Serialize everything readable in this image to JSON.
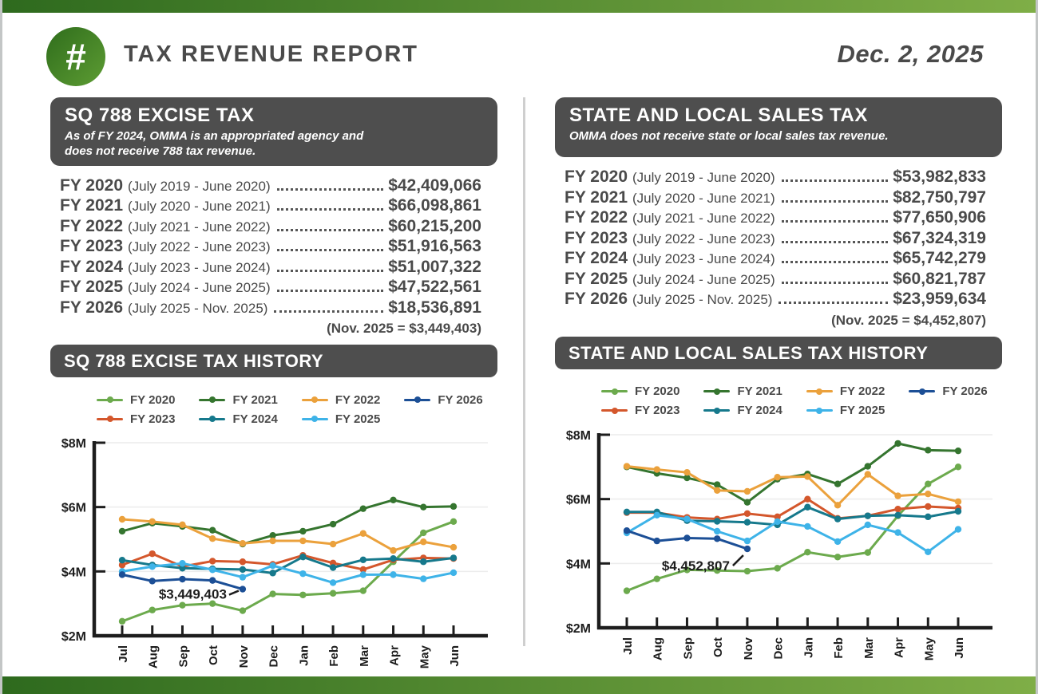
{
  "page": {
    "title": "TAX REVENUE REPORT",
    "date": "Dec. 2, 2025",
    "logo_glyph": "#"
  },
  "colors": {
    "accent_green_dark": "#2e6a1e",
    "accent_green_light": "#7fae47",
    "header_box": "#4e4e4e",
    "text": "#4a4a4a"
  },
  "left_panel": {
    "header": {
      "title": "SQ 788 EXCISE TAX",
      "subtitle": "As of FY 2024, OMMA is an appropriated agency and does not receive 788 tax revenue."
    },
    "rows": [
      {
        "fy": "FY 2020",
        "period": "(July 2019 - June 2020)",
        "amount": "$42,409,066"
      },
      {
        "fy": "FY 2021",
        "period": "(July 2020 - June 2021)",
        "amount": "$66,098,861"
      },
      {
        "fy": "FY 2022",
        "period": "(July 2021 - June 2022)",
        "amount": "$60,215,200"
      },
      {
        "fy": "FY 2023",
        "period": "(July 2022 - June 2023)",
        "amount": "$51,916,563"
      },
      {
        "fy": "FY 2024",
        "period": "(July 2023 - June 2024)",
        "amount": "$51,007,322"
      },
      {
        "fy": "FY 2025",
        "period": "(July 2024 - June 2025)",
        "amount": "$47,522,561"
      },
      {
        "fy": "FY 2026",
        "period": "(July 2025 - Nov. 2025)",
        "amount": "$18,536,891"
      }
    ],
    "footnote": "(Nov. 2025 = $3,449,403)",
    "chart_title": "SQ 788 EXCISE TAX HISTORY"
  },
  "right_panel": {
    "header": {
      "title": "STATE AND LOCAL SALES TAX",
      "subtitle": "OMMA does not receive state or local sales tax revenue."
    },
    "rows": [
      {
        "fy": "FY 2020",
        "period": "(July 2019 - June 2020)",
        "amount": "$53,982,833"
      },
      {
        "fy": "FY 2021",
        "period": "(July 2020 - June 2021)",
        "amount": "$82,750,797"
      },
      {
        "fy": "FY 2022",
        "period": "(July 2021 - June 2022)",
        "amount": "$77,650,906"
      },
      {
        "fy": "FY 2023",
        "period": "(July 2022 - June 2023)",
        "amount": "$67,324,319"
      },
      {
        "fy": "FY 2024",
        "period": "(July 2023 - June 2024)",
        "amount": "$65,742,279"
      },
      {
        "fy": "FY 2025",
        "period": "(July 2024 - June 2025)",
        "amount": "$60,821,787"
      },
      {
        "fy": "FY 2026",
        "period": "(July 2025 - Nov. 2025)",
        "amount": "$23,959,634"
      }
    ],
    "footnote": "(Nov. 2025 = $4,452,807)",
    "chart_title": "STATE AND LOCAL SALES TAX HISTORY"
  },
  "chart_data": [
    {
      "type": "line",
      "title": "SQ 788 EXCISE TAX HISTORY",
      "y_unit": "USD millions",
      "ylim": [
        2,
        8
      ],
      "yticks": [
        {
          "v": 2,
          "label": "$2M"
        },
        {
          "v": 4,
          "label": "$4M"
        },
        {
          "v": 6,
          "label": "$6M"
        },
        {
          "v": 8,
          "label": "$8M"
        }
      ],
      "grid": true,
      "x": [
        "Jul",
        "Aug",
        "Sep",
        "Oct",
        "Nov",
        "Dec",
        "Jan",
        "Feb",
        "Mar",
        "Apr",
        "May",
        "Jun"
      ],
      "legend_rows": [
        [
          "FY 2020",
          "FY 2021",
          "FY 2022",
          "FY 2026"
        ],
        [
          "FY 2023",
          "FY 2024",
          "FY 2025"
        ]
      ],
      "series": [
        {
          "name": "FY 2020",
          "color": "#6caa4d",
          "values": [
            2.45,
            2.8,
            2.95,
            3.0,
            2.78,
            3.3,
            3.27,
            3.32,
            3.4,
            4.3,
            5.2,
            5.55
          ]
        },
        {
          "name": "FY 2021",
          "color": "#35752f",
          "values": [
            5.25,
            5.5,
            5.4,
            5.28,
            4.85,
            5.12,
            5.25,
            5.47,
            5.95,
            6.22,
            6.0,
            6.02
          ]
        },
        {
          "name": "FY 2022",
          "color": "#eba13c",
          "values": [
            5.62,
            5.55,
            5.45,
            5.02,
            4.87,
            4.95,
            4.95,
            4.85,
            5.18,
            4.65,
            4.92,
            4.75
          ]
        },
        {
          "name": "FY 2023",
          "color": "#d4572c",
          "values": [
            4.2,
            4.55,
            4.15,
            4.32,
            4.3,
            4.22,
            4.5,
            4.26,
            4.06,
            4.36,
            4.42,
            4.4
          ]
        },
        {
          "name": "FY 2024",
          "color": "#16798c",
          "values": [
            4.35,
            4.2,
            4.1,
            4.08,
            4.06,
            3.95,
            4.45,
            4.12,
            4.36,
            4.4,
            4.3,
            4.42
          ]
        },
        {
          "name": "FY 2025",
          "color": "#3eb3e8",
          "values": [
            4.0,
            4.15,
            4.25,
            4.05,
            3.82,
            4.18,
            3.93,
            3.65,
            3.9,
            3.9,
            3.77,
            3.96
          ]
        },
        {
          "name": "FY 2026",
          "color": "#1c4f96",
          "values": [
            3.9,
            3.7,
            3.76,
            3.72,
            3.449
          ]
        }
      ],
      "annotation": {
        "text": "$3,449,403",
        "value": 3449403,
        "series": "FY 2026",
        "month": "Nov",
        "label_offset": [
          -20,
          12
        ],
        "pointer": [
          -17,
          7,
          -5,
          2
        ]
      }
    },
    {
      "type": "line",
      "title": "STATE AND LOCAL SALES TAX HISTORY",
      "y_unit": "USD millions",
      "ylim": [
        2,
        8
      ],
      "yticks": [
        {
          "v": 2,
          "label": "$2M"
        },
        {
          "v": 4,
          "label": "$4M"
        },
        {
          "v": 6,
          "label": "$6M"
        },
        {
          "v": 8,
          "label": "$8M"
        }
      ],
      "grid": true,
      "x": [
        "Jul",
        "Aug",
        "Sep",
        "Oct",
        "Nov",
        "Dec",
        "Jan",
        "Feb",
        "Mar",
        "Apr",
        "May",
        "Jun"
      ],
      "legend_rows": [
        [
          "FY 2020",
          "FY 2021",
          "FY 2022",
          "FY 2026"
        ],
        [
          "FY 2023",
          "FY 2024",
          "FY 2025"
        ]
      ],
      "series": [
        {
          "name": "FY 2020",
          "color": "#6caa4d",
          "values": [
            3.15,
            3.52,
            3.8,
            3.78,
            3.76,
            3.85,
            4.35,
            4.2,
            4.34,
            5.48,
            6.47,
            7.0
          ]
        },
        {
          "name": "FY 2021",
          "color": "#35752f",
          "values": [
            7.0,
            6.8,
            6.66,
            6.45,
            5.9,
            6.62,
            6.78,
            6.47,
            7.02,
            7.73,
            7.52,
            7.5
          ]
        },
        {
          "name": "FY 2022",
          "color": "#eba13c",
          "values": [
            7.02,
            6.92,
            6.83,
            6.27,
            6.24,
            6.68,
            6.7,
            5.81,
            6.77,
            6.1,
            6.16,
            5.92
          ]
        },
        {
          "name": "FY 2023",
          "color": "#d4572c",
          "values": [
            5.58,
            5.58,
            5.43,
            5.38,
            5.55,
            5.45,
            6.0,
            5.4,
            5.48,
            5.69,
            5.77,
            5.72
          ]
        },
        {
          "name": "FY 2024",
          "color": "#16798c",
          "values": [
            5.6,
            5.6,
            5.33,
            5.31,
            5.28,
            5.2,
            5.75,
            5.38,
            5.48,
            5.5,
            5.45,
            5.62
          ]
        },
        {
          "name": "FY 2025",
          "color": "#3eb3e8",
          "values": [
            4.95,
            5.5,
            5.38,
            5.0,
            4.7,
            5.3,
            5.15,
            4.68,
            5.2,
            4.96,
            4.36,
            5.06
          ]
        },
        {
          "name": "FY 2026",
          "color": "#1c4f96",
          "values": [
            5.02,
            4.7,
            4.79,
            4.77,
            4.453
          ]
        }
      ],
      "annotation": {
        "text": "$4,452,807",
        "value": 4452807,
        "series": "FY 2026",
        "month": "Nov",
        "label_offset": [
          -22,
          27
        ],
        "pointer": [
          -18,
          21,
          -5,
          8
        ]
      }
    }
  ]
}
